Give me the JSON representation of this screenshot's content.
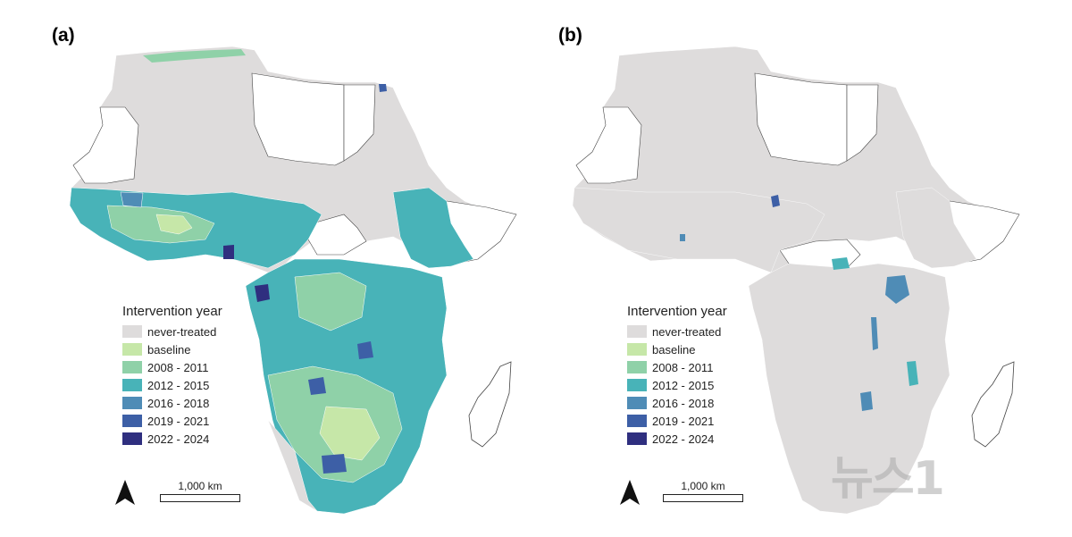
{
  "panels": [
    {
      "label": "(a)",
      "legend_title": "Intervention year"
    },
    {
      "label": "(b)",
      "legend_title": "Intervention year"
    }
  ],
  "legend_items": [
    {
      "label": "never-treated",
      "color": "#dedcdc"
    },
    {
      "label": "baseline",
      "color": "#c6e7a8"
    },
    {
      "label": "2008 - 2011",
      "color": "#8fd1a8"
    },
    {
      "label": "2012 - 2015",
      "color": "#48b3b8"
    },
    {
      "label": "2016 - 2018",
      "color": "#4f8cb6"
    },
    {
      "label": "2019 - 2021",
      "color": "#3d5fa6"
    },
    {
      "label": "2022 - 2024",
      "color": "#2f2f7f"
    }
  ],
  "scale": {
    "label": "1,000 km"
  },
  "north_arrow_icon": "north-arrow-icon",
  "watermark": {
    "text": "뉴스1"
  }
}
